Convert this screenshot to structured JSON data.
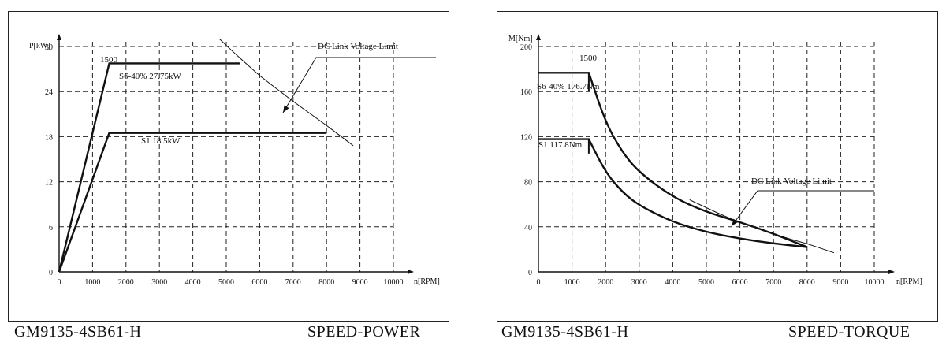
{
  "chart_data": [
    {
      "type": "line",
      "title": "SPEED-POWER",
      "model": "GM9135-4SB61-H",
      "xlabel": "n[RPM]",
      "ylabel": "P[kW]",
      "xlim": [
        0,
        10000
      ],
      "ylim": [
        0,
        30
      ],
      "x_ticks": [
        0,
        1000,
        2000,
        3000,
        4000,
        5000,
        6000,
        7000,
        8000,
        9000,
        10000
      ],
      "y_ticks": [
        0,
        6,
        12,
        18,
        24,
        30
      ],
      "grid": true,
      "series": [
        {
          "name": "S6-40% 27.75kW",
          "x": [
            0,
            1500,
            5400
          ],
          "y": [
            0,
            27.75,
            27.75
          ]
        },
        {
          "name": "S1 18.5kW",
          "x": [
            0,
            1500,
            8000
          ],
          "y": [
            0,
            18.5,
            18.5
          ]
        },
        {
          "name": "DC Link Voltage Limit",
          "x": [
            4800,
            5200,
            5600,
            6000,
            6500,
            7000,
            7500,
            8000,
            8500,
            8800
          ],
          "y": [
            31,
            29.3,
            27.7,
            26.1,
            24.4,
            22.7,
            21.1,
            19.5,
            17.8,
            16.8
          ]
        }
      ],
      "annotations": [
        {
          "id": "s6",
          "text": "S6-40% 27.75kW"
        },
        {
          "id": "s1",
          "text": "S1 18.5kW"
        },
        {
          "id": "dc",
          "text": "DC Link Voltage Limit"
        },
        {
          "id": "base",
          "text": "1500"
        }
      ]
    },
    {
      "type": "line",
      "title": "SPEED-TORQUE",
      "model": "GM9135-4SB61-H",
      "xlabel": "n[RPM]",
      "ylabel": "M[Nm]",
      "xlim": [
        0,
        10000
      ],
      "ylim": [
        0,
        200
      ],
      "x_ticks": [
        0,
        1000,
        2000,
        3000,
        4000,
        5000,
        6000,
        7000,
        8000,
        9000,
        10000
      ],
      "y_ticks": [
        0,
        40,
        80,
        120,
        160,
        200
      ],
      "grid": true,
      "series": [
        {
          "name": "S6-40% 176.7Nm",
          "x": [
            0,
            1500,
            2000,
            2500,
            3000,
            4000,
            5000,
            6000,
            7000,
            8000
          ],
          "y": [
            176.7,
            176.7,
            132.5,
            106,
            88.3,
            66.3,
            53,
            44.2,
            34,
            22
          ]
        },
        {
          "name": "S1 117.8Nm",
          "x": [
            0,
            1500,
            2000,
            2500,
            3000,
            4000,
            5000,
            6000,
            7000,
            8000
          ],
          "y": [
            117.8,
            117.8,
            88.3,
            70.7,
            58.9,
            44.2,
            35.3,
            29.5,
            25.2,
            22
          ]
        },
        {
          "name": "DC Link Voltage Limit",
          "x": [
            4500,
            5000,
            5500,
            6000,
            6500,
            7000,
            7500,
            8000,
            8500,
            8800
          ],
          "y": [
            64,
            57,
            50,
            44,
            39,
            34,
            29,
            25,
            20,
            17
          ]
        }
      ],
      "annotations": [
        {
          "id": "s6",
          "text": "S6-40% 176.7Nm"
        },
        {
          "id": "s1",
          "text": "S1 117.8Nm"
        },
        {
          "id": "dc",
          "text": "DC Link Voltage Limit"
        },
        {
          "id": "base",
          "text": "1500"
        }
      ]
    }
  ]
}
